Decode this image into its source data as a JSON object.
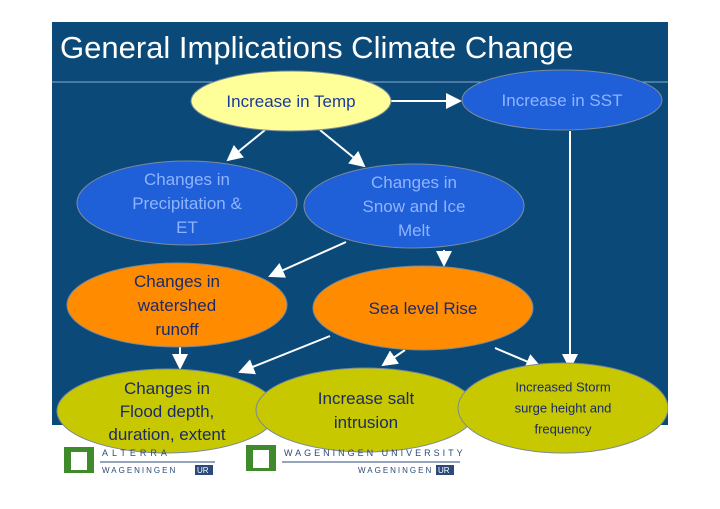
{
  "title": "General Implications Climate Change",
  "nodes": [
    {
      "lines": [
        "Increase in Temp"
      ]
    },
    {
      "lines": [
        "Increase in SST"
      ]
    },
    {
      "lines": [
        "Changes in",
        "Precipitation &",
        "ET"
      ]
    },
    {
      "lines": [
        "Changes in",
        "Snow and Ice",
        "Melt"
      ]
    },
    {
      "lines": [
        "Changes in",
        "watershed",
        "runoff"
      ]
    },
    {
      "lines": [
        "Sea level Rise"
      ]
    },
    {
      "lines": [
        "Changes in",
        "Flood depth,",
        "duration, extent"
      ]
    },
    {
      "lines": [
        "Increase salt",
        "intrusion"
      ]
    },
    {
      "lines": [
        "Increased Storm",
        "surge height and",
        "frequency"
      ]
    }
  ],
  "logos": {
    "alterra_top": "ALTERRA",
    "alterra_bottom": "WAGENINGEN",
    "alterra_ur": "UR",
    "wu_top": "WAGENINGEN UNIVERSITY",
    "wu_bottom": "WAGENINGEN",
    "wu_ur": "UR"
  }
}
